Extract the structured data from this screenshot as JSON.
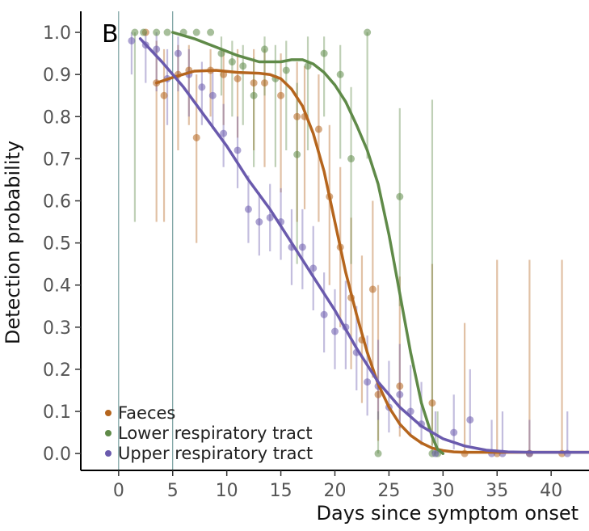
{
  "chart_data": {
    "type": "scatter",
    "panel_label": "B",
    "xlabel": "Days since symptom onset",
    "ylabel": "Detection probability",
    "xlim": [
      -3.5,
      43.5
    ],
    "ylim": [
      -0.04,
      1.05
    ],
    "xticks": [
      0,
      5,
      10,
      15,
      20,
      25,
      30,
      35,
      40
    ],
    "xtick_labels": [
      "0",
      "5",
      "10",
      "15",
      "20",
      "25",
      "30",
      "35",
      "40"
    ],
    "yticks": [
      0.0,
      0.1,
      0.2,
      0.3,
      0.4,
      0.5,
      0.6,
      0.7,
      0.8,
      0.9,
      1.0
    ],
    "ytick_labels": [
      "0.0",
      "0.1",
      "0.2",
      "0.3",
      "0.4",
      "0.5",
      "0.6",
      "0.7",
      "0.8",
      "0.9",
      "1.0"
    ],
    "vlines": [
      0,
      5
    ],
    "vline_color": "#5b8a8a",
    "grid": false,
    "legend_position": "bottom-left",
    "series": [
      {
        "name": "Faeces",
        "color": "#b5651d",
        "points": [
          {
            "x": 2.5,
            "y": 1.0,
            "lo": 1.0,
            "hi": 1.0
          },
          {
            "x": 3.5,
            "y": 0.88,
            "lo": 0.55,
            "hi": 0.98
          },
          {
            "x": 4.2,
            "y": 0.85,
            "lo": 0.55,
            "hi": 0.96
          },
          {
            "x": 5.5,
            "y": 0.9,
            "lo": 0.72,
            "hi": 0.97
          },
          {
            "x": 6.5,
            "y": 0.91,
            "lo": 0.78,
            "hi": 0.97
          },
          {
            "x": 7.2,
            "y": 0.75,
            "lo": 0.5,
            "hi": 0.9
          },
          {
            "x": 8.5,
            "y": 0.91,
            "lo": 0.8,
            "hi": 0.96
          },
          {
            "x": 9.7,
            "y": 0.9,
            "lo": 0.78,
            "hi": 0.96
          },
          {
            "x": 11.0,
            "y": 0.89,
            "lo": 0.75,
            "hi": 0.96
          },
          {
            "x": 12.5,
            "y": 0.88,
            "lo": 0.72,
            "hi": 0.96
          },
          {
            "x": 13.5,
            "y": 0.88,
            "lo": 0.68,
            "hi": 0.96
          },
          {
            "x": 15.0,
            "y": 0.85,
            "lo": 0.62,
            "hi": 0.95
          },
          {
            "x": 16.5,
            "y": 0.8,
            "lo": 0.55,
            "hi": 0.93
          },
          {
            "x": 17.2,
            "y": 0.8,
            "lo": 0.58,
            "hi": 0.92
          },
          {
            "x": 18.5,
            "y": 0.77,
            "lo": 0.55,
            "hi": 0.9
          },
          {
            "x": 19.5,
            "y": 0.61,
            "lo": 0.4,
            "hi": 0.78
          },
          {
            "x": 20.5,
            "y": 0.49,
            "lo": 0.3,
            "hi": 0.68
          },
          {
            "x": 21.5,
            "y": 0.37,
            "lo": 0.2,
            "hi": 0.56
          },
          {
            "x": 22.5,
            "y": 0.27,
            "lo": 0.12,
            "hi": 0.47
          },
          {
            "x": 23.5,
            "y": 0.39,
            "lo": 0.18,
            "hi": 0.6
          },
          {
            "x": 24.0,
            "y": 0.14,
            "lo": 0.03,
            "hi": 0.4
          },
          {
            "x": 26.0,
            "y": 0.16,
            "lo": 0.04,
            "hi": 0.42
          },
          {
            "x": 29.0,
            "y": 0.12,
            "lo": 0.02,
            "hi": 0.45
          },
          {
            "x": 32.0,
            "y": 0.0,
            "lo": 0.0,
            "hi": 0.31
          },
          {
            "x": 35.0,
            "y": 0.0,
            "lo": 0.0,
            "hi": 0.46
          },
          {
            "x": 38.0,
            "y": 0.0,
            "lo": 0.0,
            "hi": 0.46
          },
          {
            "x": 41.0,
            "y": 0.0,
            "lo": 0.0,
            "hi": 0.46
          }
        ],
        "fit": [
          [
            3.5,
            0.88
          ],
          [
            5,
            0.893
          ],
          [
            7,
            0.908
          ],
          [
            9,
            0.91
          ],
          [
            11,
            0.905
          ],
          [
            13,
            0.903
          ],
          [
            14,
            0.9
          ],
          [
            15,
            0.89
          ],
          [
            16,
            0.865
          ],
          [
            17,
            0.825
          ],
          [
            18,
            0.76
          ],
          [
            19,
            0.67
          ],
          [
            20,
            0.55
          ],
          [
            21,
            0.43
          ],
          [
            22,
            0.33
          ],
          [
            23,
            0.24
          ],
          [
            24,
            0.165
          ],
          [
            25,
            0.11
          ],
          [
            26,
            0.07
          ],
          [
            27,
            0.043
          ],
          [
            28,
            0.025
          ],
          [
            29,
            0.013
          ],
          [
            30,
            0.007
          ],
          [
            31,
            0.004
          ],
          [
            32,
            0.003
          ],
          [
            34,
            0.003
          ],
          [
            37,
            0.003
          ],
          [
            40,
            0.003
          ],
          [
            43.5,
            0.003
          ]
        ]
      },
      {
        "name": "Lower respiratory tract",
        "color": "#5f8a48",
        "points": [
          {
            "x": 1.5,
            "y": 1.0,
            "lo": 0.55,
            "hi": 1.0
          },
          {
            "x": 2.3,
            "y": 1.0,
            "lo": 1.0,
            "hi": 1.0
          },
          {
            "x": 3.5,
            "y": 1.0,
            "lo": 1.0,
            "hi": 1.0
          },
          {
            "x": 4.5,
            "y": 1.0,
            "lo": 1.0,
            "hi": 1.0
          },
          {
            "x": 6.0,
            "y": 1.0,
            "lo": 1.0,
            "hi": 1.0
          },
          {
            "x": 7.2,
            "y": 1.0,
            "lo": 1.0,
            "hi": 1.0
          },
          {
            "x": 8.5,
            "y": 1.0,
            "lo": 1.0,
            "hi": 1.0
          },
          {
            "x": 9.5,
            "y": 0.95,
            "lo": 0.85,
            "hi": 0.99
          },
          {
            "x": 10.5,
            "y": 0.93,
            "lo": 0.8,
            "hi": 0.98
          },
          {
            "x": 11.5,
            "y": 0.92,
            "lo": 0.78,
            "hi": 0.97
          },
          {
            "x": 12.5,
            "y": 0.85,
            "lo": 0.68,
            "hi": 0.94
          },
          {
            "x": 13.5,
            "y": 0.96,
            "lo": 0.85,
            "hi": 0.99
          },
          {
            "x": 14.5,
            "y": 0.89,
            "lo": 0.68,
            "hi": 0.97
          },
          {
            "x": 15.5,
            "y": 0.91,
            "lo": 0.72,
            "hi": 0.98
          },
          {
            "x": 16.5,
            "y": 0.71,
            "lo": 0.45,
            "hi": 0.88
          },
          {
            "x": 17.5,
            "y": 0.92,
            "lo": 0.72,
            "hi": 0.99
          },
          {
            "x": 19.0,
            "y": 0.95,
            "lo": 0.8,
            "hi": 0.99
          },
          {
            "x": 20.5,
            "y": 0.9,
            "lo": 0.7,
            "hi": 0.97
          },
          {
            "x": 21.5,
            "y": 0.7,
            "lo": 0.45,
            "hi": 0.87
          },
          {
            "x": 23.0,
            "y": 1.0,
            "lo": 0.7,
            "hi": 1.0
          },
          {
            "x": 24.0,
            "y": 0.0,
            "lo": 0.0,
            "hi": 0.1
          },
          {
            "x": 26.0,
            "y": 0.61,
            "lo": 0.35,
            "hi": 0.82
          },
          {
            "x": 29.0,
            "y": 0.0,
            "lo": 0.0,
            "hi": 0.84
          },
          {
            "x": 29.5,
            "y": 0.0,
            "lo": 0.0,
            "hi": 0.1
          }
        ],
        "fit": [
          [
            5,
            1.0
          ],
          [
            7,
            0.985
          ],
          [
            9,
            0.965
          ],
          [
            11,
            0.945
          ],
          [
            13,
            0.93
          ],
          [
            15,
            0.93
          ],
          [
            16,
            0.935
          ],
          [
            17,
            0.935
          ],
          [
            18,
            0.925
          ],
          [
            19,
            0.905
          ],
          [
            20,
            0.875
          ],
          [
            21,
            0.835
          ],
          [
            22,
            0.78
          ],
          [
            23,
            0.72
          ],
          [
            24,
            0.64
          ],
          [
            25,
            0.52
          ],
          [
            26,
            0.38
          ],
          [
            27,
            0.24
          ],
          [
            28,
            0.12
          ],
          [
            29,
            0.04
          ],
          [
            29.5,
            0.01
          ],
          [
            30,
            0.0
          ]
        ]
      },
      {
        "name": "Upper respiratory tract",
        "color": "#6a5aad",
        "points": [
          {
            "x": 1.2,
            "y": 0.98,
            "lo": 0.9,
            "hi": 1.0
          },
          {
            "x": 2.5,
            "y": 0.97,
            "lo": 0.88,
            "hi": 1.0
          },
          {
            "x": 3.5,
            "y": 0.96,
            "lo": 0.86,
            "hi": 1.0
          },
          {
            "x": 4.5,
            "y": 0.89,
            "lo": 0.78,
            "hi": 0.96
          },
          {
            "x": 5.5,
            "y": 0.95,
            "lo": 0.86,
            "hi": 0.99
          },
          {
            "x": 6.5,
            "y": 0.9,
            "lo": 0.8,
            "hi": 0.96
          },
          {
            "x": 7.7,
            "y": 0.87,
            "lo": 0.78,
            "hi": 0.93
          },
          {
            "x": 8.7,
            "y": 0.85,
            "lo": 0.77,
            "hi": 0.91
          },
          {
            "x": 9.7,
            "y": 0.76,
            "lo": 0.68,
            "hi": 0.83
          },
          {
            "x": 11.0,
            "y": 0.72,
            "lo": 0.63,
            "hi": 0.8
          },
          {
            "x": 12.0,
            "y": 0.58,
            "lo": 0.5,
            "hi": 0.66
          },
          {
            "x": 13.0,
            "y": 0.55,
            "lo": 0.47,
            "hi": 0.62
          },
          {
            "x": 14.0,
            "y": 0.56,
            "lo": 0.48,
            "hi": 0.64
          },
          {
            "x": 15.0,
            "y": 0.55,
            "lo": 0.46,
            "hi": 0.63
          },
          {
            "x": 16.0,
            "y": 0.49,
            "lo": 0.4,
            "hi": 0.58
          },
          {
            "x": 17.0,
            "y": 0.49,
            "lo": 0.39,
            "hi": 0.58
          },
          {
            "x": 18.0,
            "y": 0.44,
            "lo": 0.34,
            "hi": 0.54
          },
          {
            "x": 19.0,
            "y": 0.33,
            "lo": 0.24,
            "hi": 0.43
          },
          {
            "x": 20.0,
            "y": 0.29,
            "lo": 0.2,
            "hi": 0.39
          },
          {
            "x": 21.0,
            "y": 0.3,
            "lo": 0.2,
            "hi": 0.41
          },
          {
            "x": 22.0,
            "y": 0.24,
            "lo": 0.15,
            "hi": 0.35
          },
          {
            "x": 23.0,
            "y": 0.17,
            "lo": 0.09,
            "hi": 0.28
          },
          {
            "x": 24.0,
            "y": 0.16,
            "lo": 0.08,
            "hi": 0.27
          },
          {
            "x": 25.0,
            "y": 0.11,
            "lo": 0.05,
            "hi": 0.22
          },
          {
            "x": 26.0,
            "y": 0.14,
            "lo": 0.06,
            "hi": 0.26
          },
          {
            "x": 27.0,
            "y": 0.1,
            "lo": 0.04,
            "hi": 0.21
          },
          {
            "x": 28.0,
            "y": 0.07,
            "lo": 0.02,
            "hi": 0.17
          },
          {
            "x": 29.3,
            "y": 0.0,
            "lo": 0.0,
            "hi": 0.1
          },
          {
            "x": 31.0,
            "y": 0.05,
            "lo": 0.01,
            "hi": 0.14
          },
          {
            "x": 32.5,
            "y": 0.08,
            "lo": 0.02,
            "hi": 0.2
          },
          {
            "x": 34.5,
            "y": 0.0,
            "lo": 0.0,
            "hi": 0.08
          },
          {
            "x": 35.5,
            "y": 0.0,
            "lo": 0.0,
            "hi": 0.1
          },
          {
            "x": 38.0,
            "y": 0.0,
            "lo": 0.0,
            "hi": 0.08
          },
          {
            "x": 41.5,
            "y": 0.0,
            "lo": 0.0,
            "hi": 0.1
          }
        ],
        "fit": [
          [
            2,
            0.985
          ],
          [
            4,
            0.93
          ],
          [
            6,
            0.87
          ],
          [
            8,
            0.8
          ],
          [
            10,
            0.73
          ],
          [
            12,
            0.65
          ],
          [
            14,
            0.58
          ],
          [
            16,
            0.5
          ],
          [
            18,
            0.42
          ],
          [
            20,
            0.34
          ],
          [
            22,
            0.25
          ],
          [
            24,
            0.17
          ],
          [
            26,
            0.11
          ],
          [
            28,
            0.065
          ],
          [
            30,
            0.035
          ],
          [
            32,
            0.018
          ],
          [
            34,
            0.008
          ],
          [
            36,
            0.004
          ],
          [
            38,
            0.003
          ],
          [
            41,
            0.003
          ],
          [
            43.5,
            0.003
          ]
        ]
      }
    ]
  }
}
